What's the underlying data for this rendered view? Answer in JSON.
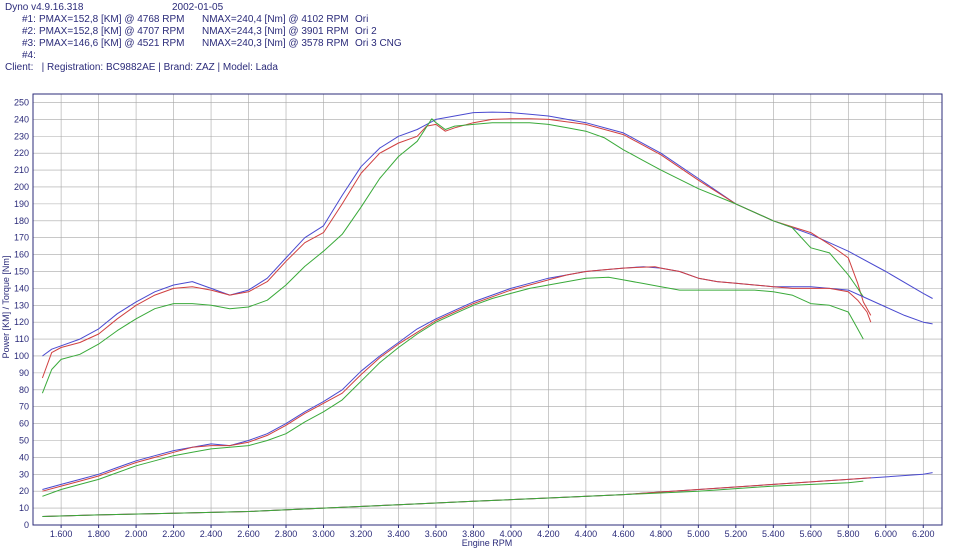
{
  "header": {
    "app_version": "Dyno v4.9.16.318",
    "date": "2002-01-05",
    "runs": [
      {
        "id": "#1:",
        "pmax": "PMAX=152,8 [KM] @ 4768 RPM",
        "nmax": "NMAX=240,4 [Nm] @ 4102 RPM",
        "name": "Ori"
      },
      {
        "id": "#2:",
        "pmax": "PMAX=152,8 [KM] @ 4707 RPM",
        "nmax": "NMAX=244,3 [Nm] @ 3901 RPM",
        "name": "Ori 2"
      },
      {
        "id": "#3:",
        "pmax": "PMAX=146,6 [KM] @ 4521 RPM",
        "nmax": "NMAX=240,3 [Nm] @ 3578 RPM",
        "name": "Ori 3 CNG"
      },
      {
        "id": "#4:",
        "pmax": "",
        "nmax": "",
        "name": ""
      }
    ],
    "client_line": "Client:   | Registration: BC9882AE | Brand: ZAZ | Model: Lada"
  },
  "chart_data": {
    "type": "line",
    "xlabel": "Engine RPM",
    "ylabel": "Power [KM] / Torque [Nm]",
    "xlim": [
      1450,
      6300
    ],
    "ylim": [
      0,
      255
    ],
    "x_ticks": [
      1600,
      1800,
      2000,
      2200,
      2400,
      2600,
      2800,
      3000,
      3200,
      3400,
      3600,
      3800,
      4000,
      4200,
      4400,
      4600,
      4800,
      5000,
      5200,
      5400,
      5600,
      5800,
      6000,
      6200
    ],
    "x_tick_labels": [
      "1.600",
      "1.800",
      "2.000",
      "2.200",
      "2.400",
      "2.600",
      "2.800",
      "3.000",
      "3.200",
      "3.400",
      "3.600",
      "3.800",
      "4.000",
      "4.200",
      "4.400",
      "4.600",
      "4.800",
      "5.000",
      "5.200",
      "5.400",
      "5.600",
      "5.800",
      "6.000",
      "6.200"
    ],
    "y_ticks": [
      0,
      10,
      20,
      30,
      40,
      50,
      60,
      70,
      80,
      90,
      100,
      110,
      120,
      130,
      140,
      150,
      160,
      170,
      180,
      190,
      200,
      210,
      220,
      230,
      240,
      250
    ],
    "grid": true,
    "series": [
      {
        "name": "Ori 2",
        "kind": "torque",
        "color": "#4a4ad0",
        "x": [
          1500,
          1550,
          1600,
          1700,
          1800,
          1900,
          2000,
          2100,
          2200,
          2300,
          2400,
          2500,
          2600,
          2700,
          2800,
          2900,
          3000,
          3100,
          3200,
          3300,
          3400,
          3500,
          3600,
          3700,
          3800,
          3900,
          4000,
          4100,
          4200,
          4400,
          4600,
          4800,
          5000,
          5200,
          5400,
          5600,
          5800,
          6000,
          6200,
          6250
        ],
        "y": [
          100,
          104,
          106,
          110,
          116,
          125,
          132,
          138,
          142,
          144,
          140,
          136,
          139,
          146,
          158,
          170,
          177,
          195,
          212,
          223,
          230,
          234,
          240,
          242,
          244,
          244.3,
          244,
          243,
          242,
          238,
          232,
          220,
          205,
          190,
          180,
          172,
          162,
          150,
          137,
          134
        ]
      },
      {
        "name": "Ori",
        "kind": "torque",
        "color": "#d04040",
        "x": [
          1500,
          1550,
          1600,
          1700,
          1800,
          1900,
          2000,
          2100,
          2200,
          2300,
          2400,
          2500,
          2600,
          2700,
          2800,
          2900,
          3000,
          3100,
          3200,
          3300,
          3400,
          3500,
          3550,
          3600,
          3650,
          3700,
          3800,
          3900,
          4000,
          4100,
          4200,
          4400,
          4600,
          4800,
          5000,
          5200,
          5400,
          5600,
          5700,
          5800,
          5850,
          5880,
          5920
        ],
        "y": [
          87,
          102,
          105,
          108,
          113,
          122,
          130,
          136,
          140,
          141,
          139,
          136,
          138,
          144,
          156,
          167,
          173,
          190,
          208,
          220,
          226,
          230,
          236,
          237,
          233,
          235,
          238,
          240,
          240.3,
          240.4,
          240,
          237,
          231,
          219,
          204,
          190,
          180,
          173,
          166,
          158,
          143,
          132,
          124
        ]
      },
      {
        "name": "Ori 3 CNG",
        "kind": "torque",
        "color": "#3aaa3a",
        "x": [
          1500,
          1550,
          1600,
          1700,
          1800,
          1900,
          2000,
          2100,
          2200,
          2300,
          2400,
          2500,
          2600,
          2700,
          2800,
          2900,
          3000,
          3100,
          3200,
          3300,
          3400,
          3500,
          3578,
          3600,
          3650,
          3700,
          3800,
          3900,
          4000,
          4100,
          4200,
          4300,
          4400,
          4500,
          4600,
          4700,
          4800,
          5000,
          5200,
          5400,
          5500,
          5600,
          5700,
          5800,
          5850,
          5880
        ],
        "y": [
          78,
          92,
          98,
          101,
          107,
          115,
          122,
          128,
          131,
          131,
          130,
          128,
          129,
          133,
          142,
          153,
          162,
          172,
          188,
          205,
          218,
          227,
          240.3,
          238,
          234,
          236,
          237,
          238,
          238,
          238,
          237,
          235,
          233,
          229,
          222,
          216,
          210,
          199,
          190,
          180,
          176,
          164,
          161,
          148,
          140,
          135
        ]
      },
      {
        "name": "Ori 2",
        "kind": "power",
        "color": "#4a4ad0",
        "x": [
          1500,
          1600,
          1700,
          1800,
          1900,
          2000,
          2100,
          2200,
          2300,
          2400,
          2500,
          2600,
          2700,
          2800,
          2900,
          3000,
          3100,
          3200,
          3300,
          3400,
          3500,
          3600,
          3700,
          3800,
          3900,
          4000,
          4100,
          4200,
          4300,
          4400,
          4500,
          4600,
          4707,
          4800,
          4900,
          5000,
          5100,
          5200,
          5300,
          5400,
          5500,
          5600,
          5700,
          5800,
          5900,
          6000,
          6100,
          6200,
          6250
        ],
        "y": [
          21,
          24,
          27,
          30,
          34,
          38,
          41,
          44,
          46,
          48,
          47,
          50,
          54,
          60,
          67,
          73,
          80,
          91,
          100,
          108,
          116,
          122,
          127,
          132,
          136,
          140,
          143,
          146,
          148,
          150,
          151,
          152,
          152.8,
          152,
          150,
          146,
          144,
          143,
          142,
          141,
          141,
          141,
          140,
          139,
          134,
          129,
          124,
          120,
          119
        ]
      },
      {
        "name": "Ori",
        "kind": "power",
        "color": "#d04040",
        "x": [
          1500,
          1600,
          1700,
          1800,
          1900,
          2000,
          2100,
          2200,
          2300,
          2400,
          2500,
          2600,
          2700,
          2800,
          2900,
          3000,
          3100,
          3200,
          3300,
          3400,
          3500,
          3600,
          3700,
          3800,
          3900,
          4000,
          4100,
          4200,
          4300,
          4400,
          4500,
          4600,
          4700,
          4768,
          4800,
          4900,
          5000,
          5100,
          5200,
          5300,
          5400,
          5500,
          5600,
          5700,
          5800,
          5850,
          5900,
          5920
        ],
        "y": [
          20,
          23,
          26,
          29,
          33,
          37,
          40,
          43,
          46,
          47,
          47,
          49,
          53,
          59,
          66,
          72,
          78,
          89,
          99,
          107,
          114,
          121,
          126,
          131,
          135,
          139,
          142,
          145,
          148,
          150,
          151,
          152,
          152.5,
          152.8,
          152,
          150,
          146,
          144,
          143,
          142,
          141,
          140,
          140,
          140,
          138,
          133,
          126,
          120
        ]
      },
      {
        "name": "Ori 3 CNG",
        "kind": "power",
        "color": "#3aaa3a",
        "x": [
          1500,
          1600,
          1700,
          1800,
          1900,
          2000,
          2100,
          2200,
          2300,
          2400,
          2500,
          2600,
          2700,
          2800,
          2900,
          3000,
          3100,
          3200,
          3300,
          3400,
          3500,
          3600,
          3700,
          3800,
          3900,
          4000,
          4100,
          4200,
          4300,
          4400,
          4521,
          4600,
          4700,
          4800,
          4900,
          5000,
          5100,
          5200,
          5300,
          5400,
          5500,
          5600,
          5700,
          5800,
          5850,
          5880
        ],
        "y": [
          17,
          21,
          24,
          27,
          31,
          35,
          38,
          41,
          43,
          45,
          46,
          47,
          50,
          54,
          61,
          67,
          74,
          85,
          96,
          105,
          113,
          120,
          125,
          130,
          134,
          137,
          140,
          142,
          144,
          146,
          146.6,
          145,
          143,
          141,
          139,
          139,
          139,
          139,
          139,
          138,
          136,
          131,
          130,
          126,
          116,
          110
        ]
      },
      {
        "name": "Ori 2",
        "kind": "loss",
        "color": "#4a4ad0",
        "x": [
          1500,
          1800,
          2200,
          2600,
          3000,
          3400,
          3800,
          4200,
          4600,
          5000,
          5400,
          5800,
          6200,
          6250
        ],
        "y": [
          5,
          6,
          7,
          8,
          10,
          12,
          14,
          16,
          18,
          21,
          24,
          27,
          30,
          31
        ]
      },
      {
        "name": "Ori",
        "kind": "loss",
        "color": "#d04040",
        "x": [
          1500,
          1800,
          2200,
          2600,
          3000,
          3400,
          3800,
          4200,
          4600,
          5000,
          5400,
          5800,
          5920
        ],
        "y": [
          5,
          6,
          7,
          8,
          10,
          12,
          14,
          16,
          18,
          21,
          24,
          27,
          28
        ]
      },
      {
        "name": "Ori 3 CNG",
        "kind": "loss",
        "color": "#3aaa3a",
        "x": [
          1500,
          1800,
          2200,
          2600,
          3000,
          3400,
          3800,
          4200,
          4600,
          5000,
          5400,
          5800,
          5880
        ],
        "y": [
          5,
          6,
          7,
          8,
          10,
          12,
          14,
          16,
          18,
          20,
          23,
          25,
          26
        ]
      }
    ],
    "colors": {
      "grid": "#a8a8a8",
      "frame": "#2b2b7a",
      "text": "#2b2b7a"
    }
  }
}
